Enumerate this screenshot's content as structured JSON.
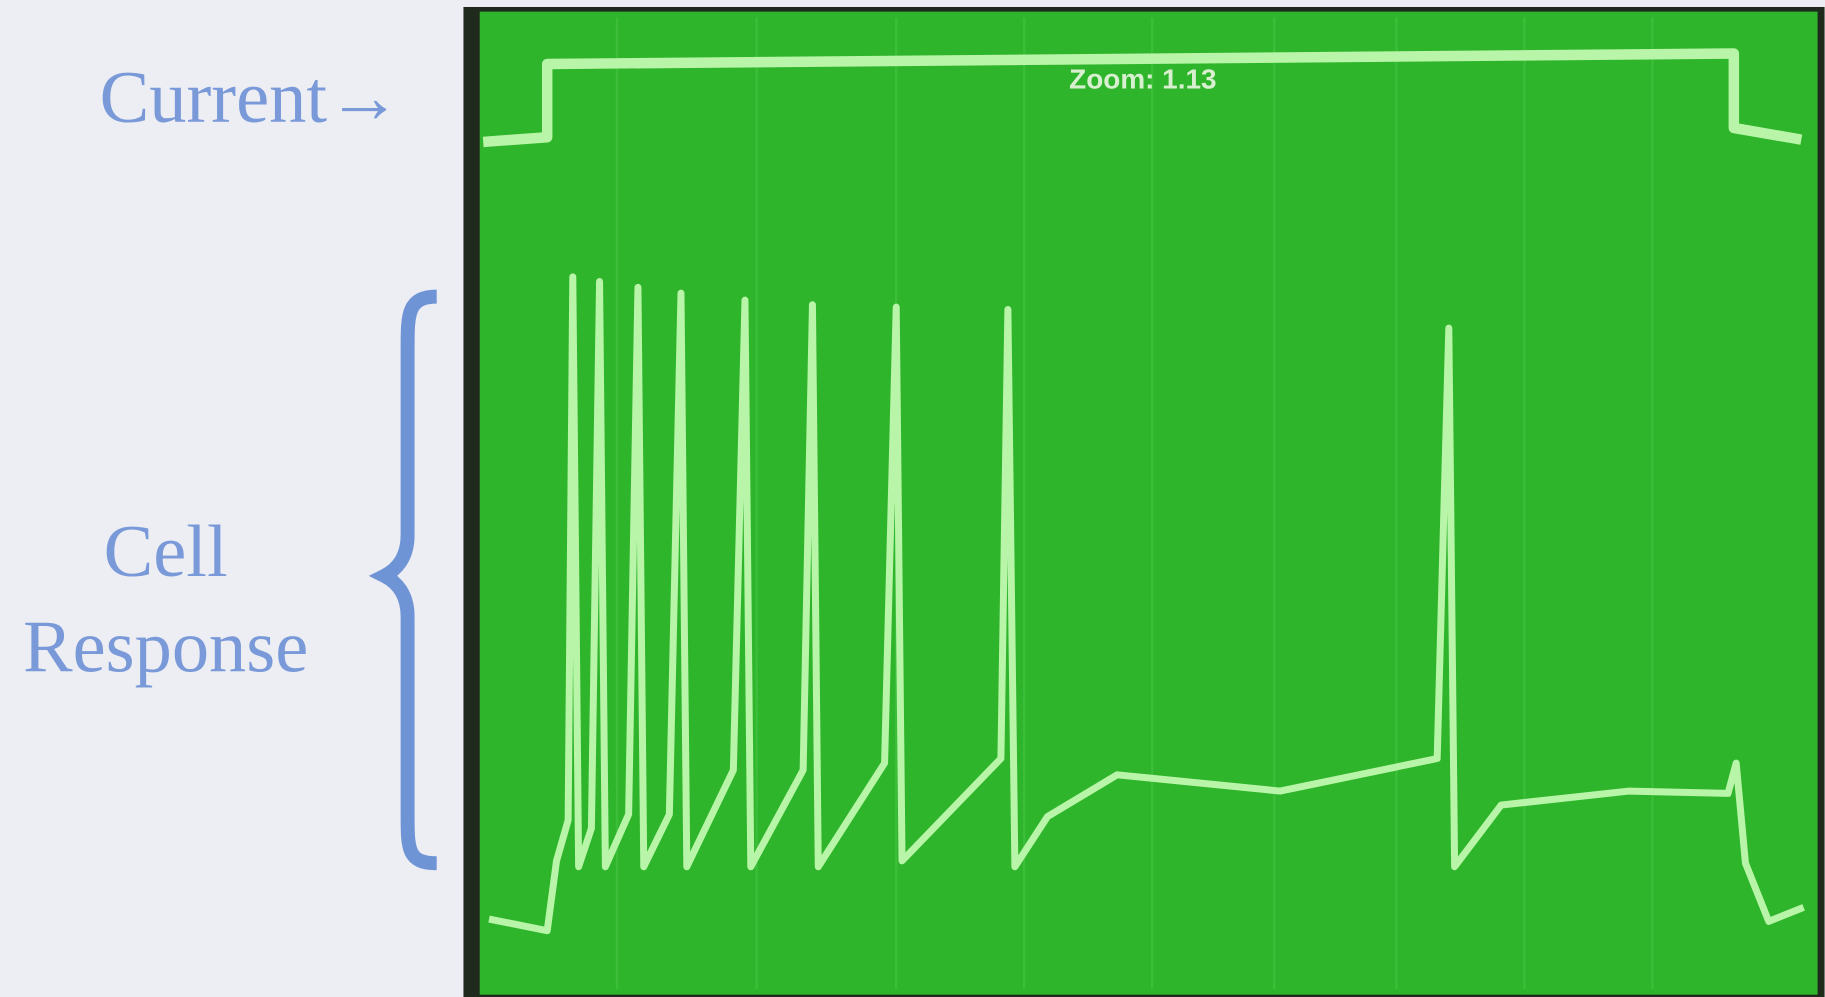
{
  "labels": {
    "current": "Current→",
    "cell_response": [
      "Cell",
      "Response"
    ]
  },
  "scope": {
    "zoom": "Zoom: 1.13"
  }
}
